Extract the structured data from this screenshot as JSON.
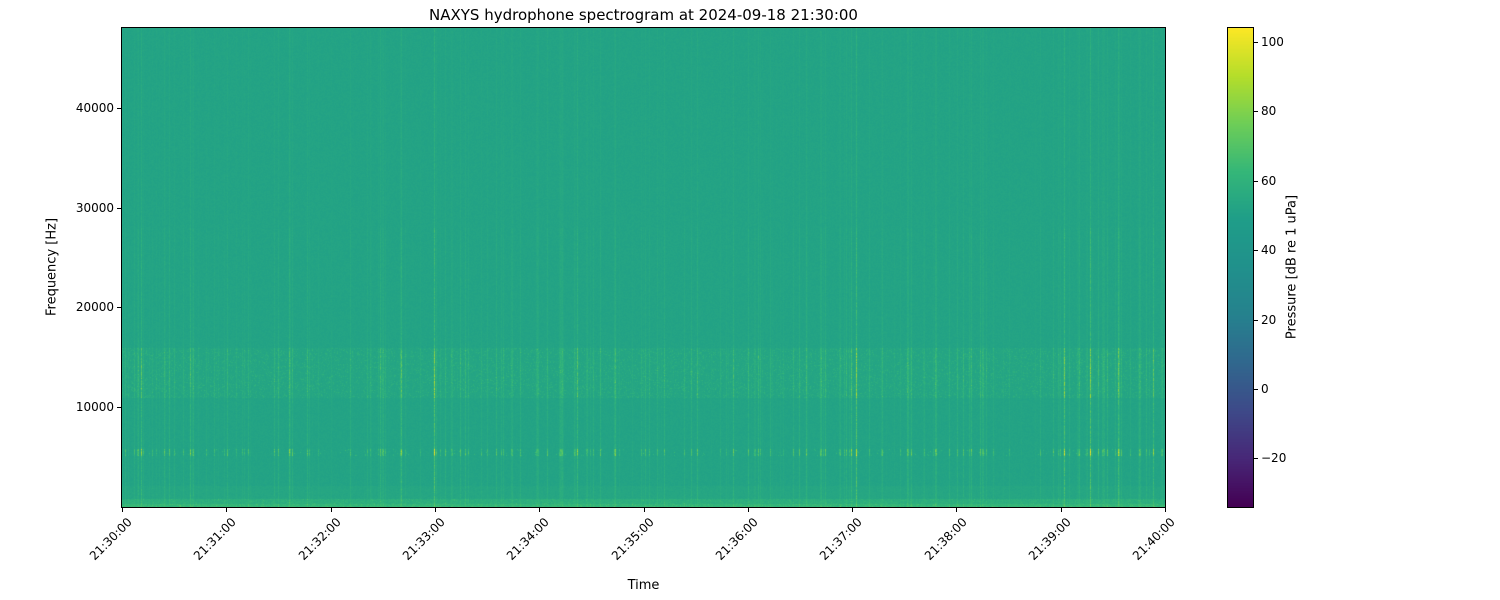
{
  "chart_data": {
    "type": "heatmap",
    "title": "NAXYS hydrophone spectrogram at 2024-09-18 21:30:00",
    "xlabel": "Time",
    "ylabel": "Frequency [Hz]",
    "x_tick_labels": [
      "21:30:00",
      "21:31:00",
      "21:32:00",
      "21:33:00",
      "21:34:00",
      "21:35:00",
      "21:36:00",
      "21:37:00",
      "21:38:00",
      "21:39:00",
      "21:40:00"
    ],
    "x_range_seconds": [
      0,
      600
    ],
    "y_tick_values": [
      10000,
      20000,
      30000,
      40000
    ],
    "y_axis_range_hz": [
      0,
      48000
    ],
    "grid": false,
    "legend": "none",
    "colorbar": {
      "label": "Pressure [dB re 1 uPa]",
      "tick_values": [
        100,
        80,
        60,
        40,
        20,
        0,
        -20
      ],
      "vmin": -34,
      "vmax": 104,
      "colormap": "viridis"
    },
    "content_summary": {
      "background_level_db": 52,
      "features": [
        {
          "name": "low-frequency-bright-band",
          "freq_hz": [
            0,
            900
          ],
          "level_db": 60,
          "character": "continuous bright strip along bottom edge"
        },
        {
          "name": "impulsive-click-band",
          "freq_hz": [
            5150,
            5850
          ],
          "peak_db": 80,
          "character": "horizontal dotted line of bright impulses"
        },
        {
          "name": "broadband-burst-band",
          "freq_hz": [
            11000,
            16000
          ],
          "peak_db": 72,
          "character": "dense brighter vertical striations"
        },
        {
          "name": "vertical-striations",
          "freq_hz": [
            1000,
            48000
          ],
          "level_db_range": [
            52,
            66
          ],
          "character": "faint full-height columns aligned with bursts"
        }
      ]
    },
    "render_params": {
      "seed": 7,
      "base_db": 52,
      "noise_db": 2.5,
      "low_band_hz": 900,
      "click_band_hz": [
        5150,
        5850
      ],
      "burst_band_hz": [
        11000,
        16000
      ],
      "burst_probability": 0.018
    }
  }
}
